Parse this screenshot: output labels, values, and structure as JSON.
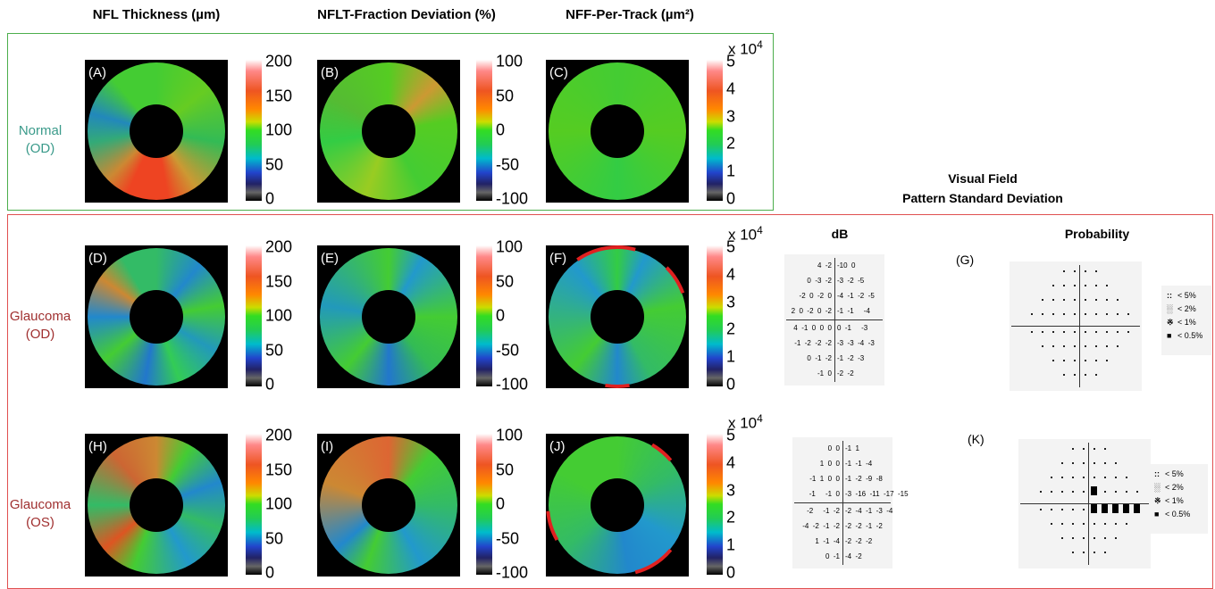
{
  "columns": [
    "NFL Thickness (µm)",
    "NFLT-Fraction Deviation (%)",
    "NFF-Per-Track (µm²)"
  ],
  "rows": [
    {
      "label": [
        "Normal",
        "(OD)"
      ],
      "panels": [
        "(A)",
        "(B)",
        "(C)"
      ]
    },
    {
      "label": [
        "Glaucoma",
        "(OD)"
      ],
      "panels": [
        "(D)",
        "(E)",
        "(F)"
      ]
    },
    {
      "label": [
        "Glaucoma",
        "(OS)"
      ],
      "panels": [
        "(H)",
        "(I)",
        "(J)"
      ]
    }
  ],
  "colorbars": [
    {
      "ticks": [
        200,
        150,
        100,
        50,
        0
      ]
    },
    {
      "ticks": [
        100,
        50,
        0,
        -50,
        -100
      ]
    },
    {
      "multiplier": "x 10",
      "exponent": "4",
      "ticks": [
        5,
        4,
        3,
        2,
        1,
        0
      ]
    }
  ],
  "visual_field": {
    "title": [
      "Visual Field",
      "Pattern Standard Deviation"
    ],
    "db_heading": "dB",
    "probability_heading": "Probability",
    "legend": [
      "< 5%",
      "< 2%",
      "< 1%",
      "< 0.5%"
    ],
    "panels": [
      {
        "label": "(G)",
        "db_rows": [
          {
            "left": "4  -2",
            "right": "-10  0"
          },
          {
            "left": "0  -3  -2",
            "right": "-3  -2  -5"
          },
          {
            "left": "-2  0  -2  0",
            "right": "-4  -1  -2  -5"
          },
          {
            "left": "2  0  -2  0  -2",
            "right": "-1  -1     -4"
          },
          {
            "left": "4  -1  0  0  0",
            "right": "0  -1     -3"
          },
          {
            "left": "-1  -2  -2  -2",
            "right": "-3  -3  -4  -3"
          },
          {
            "left": "0  -1  -2",
            "right": "-1  -2  -3"
          },
          {
            "left": "-1  0",
            "right": "-2  -2"
          }
        ]
      },
      {
        "label": "(K)",
        "db_rows": [
          {
            "left": "0  0",
            "right": "-1  1"
          },
          {
            "left": "1  0  0",
            "right": "-1  -1  -4"
          },
          {
            "left": "-1  1  0  0",
            "right": "-1  -2  -9  -8"
          },
          {
            "left": "-1     -1  0",
            "right": "-3  -16  -11  -17  -15"
          },
          {
            "left": "-2     -1  -2",
            "right": "-2  -4  -1  -3  -4"
          },
          {
            "left": "-4  -2  -1  -2",
            "right": "-2  -2  -1  -2"
          },
          {
            "left": "1  -1  -4",
            "right": "-2  -2  -2"
          },
          {
            "left": "0  -1",
            "right": "-4  -2"
          }
        ]
      }
    ]
  }
}
